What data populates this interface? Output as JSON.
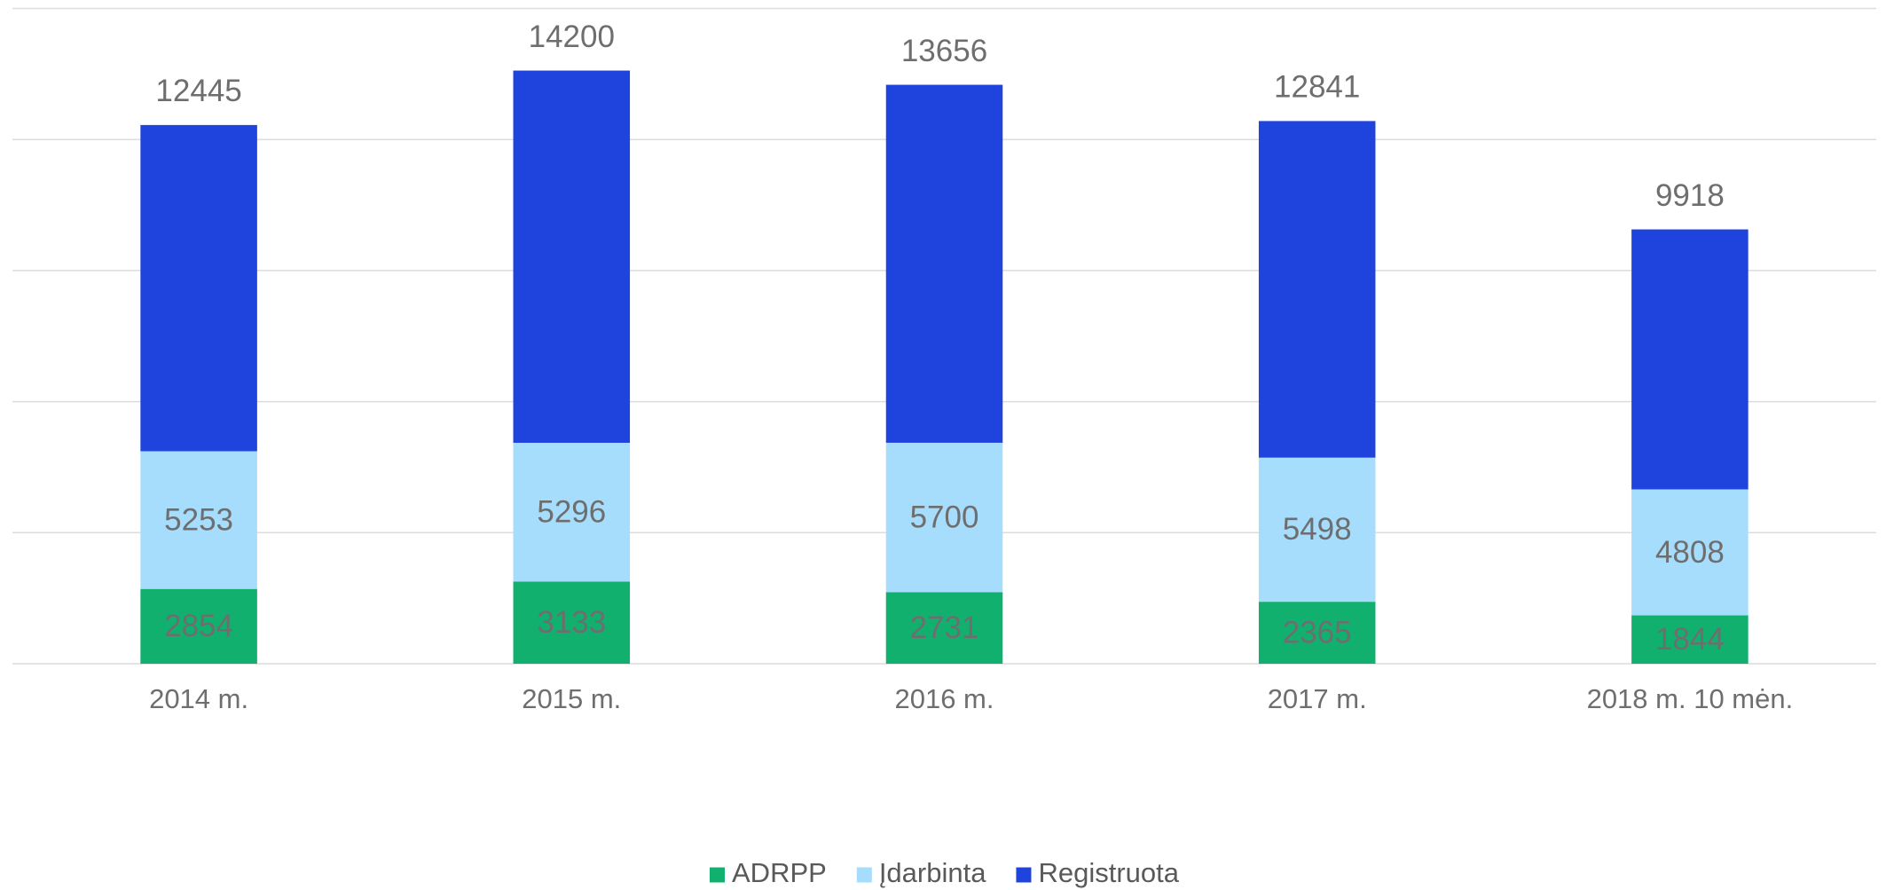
{
  "chart_data": {
    "type": "stacked-bar",
    "categories": [
      "2014 m.",
      "2015 m.",
      "2016 m.",
      "2017 m.",
      "2018 m. 10 mėn."
    ],
    "series": [
      {
        "name": "ADRPP",
        "color": "#12b06e",
        "values": [
          2854,
          3133,
          2731,
          2365,
          1844
        ]
      },
      {
        "name": "Įdarbinta",
        "color": "#a6dcfc",
        "values": [
          5253,
          5296,
          5700,
          5498,
          4808
        ]
      },
      {
        "name": "Registruota",
        "color": "#1f44dd",
        "values": [
          12445,
          14200,
          13656,
          12841,
          9918
        ]
      }
    ],
    "ylim": [
      0,
      25000
    ],
    "yticks": [
      0,
      5000,
      10000,
      15000,
      20000,
      25000
    ],
    "grid": true,
    "legend": "bottom"
  }
}
